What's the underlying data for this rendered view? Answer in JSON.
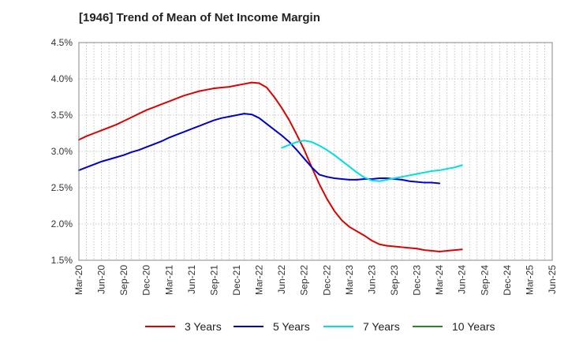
{
  "chart_data": {
    "type": "line",
    "title": "[1946]  Trend of Mean of Net Income Margin",
    "xlabel": "",
    "ylabel": "",
    "x_ticks": [
      "Mar-20",
      "Jun-20",
      "Sep-20",
      "Dec-20",
      "Mar-21",
      "Jun-21",
      "Sep-21",
      "Dec-21",
      "Mar-22",
      "Jun-22",
      "Sep-22",
      "Dec-22",
      "Mar-23",
      "Jun-23",
      "Sep-23",
      "Dec-23",
      "Mar-24",
      "Jun-24",
      "Sep-24",
      "Dec-24",
      "Mar-25",
      "Jun-25"
    ],
    "y_ticks": [
      "1.5%",
      "2.0%",
      "2.5%",
      "3.0%",
      "3.5%",
      "4.0%",
      "4.5%"
    ],
    "ylim": [
      1.5,
      4.5
    ],
    "grid": "dotted",
    "legend_position": "bottom",
    "series": [
      {
        "name": "3 Years",
        "color": "#e00000",
        "values": [
          3.16,
          3.21,
          3.25,
          3.29,
          3.33,
          3.37,
          3.42,
          3.47,
          3.52,
          3.57,
          3.61,
          3.65,
          3.69,
          3.73,
          3.77,
          3.8,
          3.83,
          3.85,
          3.87,
          3.88,
          3.89,
          3.91,
          3.93,
          3.95,
          3.94,
          3.88,
          3.75,
          3.6,
          3.43,
          3.23,
          3.02,
          2.78,
          2.55,
          2.35,
          2.18,
          2.05,
          1.96,
          1.9,
          1.84,
          1.77,
          1.72,
          1.7,
          1.69,
          1.68,
          1.67,
          1.66,
          1.64,
          1.63,
          1.62,
          1.63,
          1.64,
          1.65
        ]
      },
      {
        "name": "5 Years",
        "color": "#0000cc",
        "values": [
          2.74,
          2.78,
          2.82,
          2.86,
          2.89,
          2.92,
          2.95,
          2.99,
          3.02,
          3.06,
          3.1,
          3.14,
          3.19,
          3.23,
          3.27,
          3.31,
          3.35,
          3.39,
          3.43,
          3.46,
          3.48,
          3.5,
          3.52,
          3.51,
          3.46,
          3.38,
          3.3,
          3.22,
          3.13,
          3.02,
          2.9,
          2.78,
          2.68,
          2.65,
          2.63,
          2.62,
          2.61,
          2.61,
          2.62,
          2.62,
          2.63,
          2.63,
          2.62,
          2.61,
          2.59,
          2.58,
          2.57,
          2.57,
          2.56
        ]
      },
      {
        "name": "7 Years",
        "color": "#00e0e0",
        "values": [
          3.05,
          3.09,
          3.13,
          3.15,
          3.13,
          3.08,
          3.02,
          2.95,
          2.87,
          2.79,
          2.71,
          2.64,
          2.6,
          2.59,
          2.61,
          2.63,
          2.65,
          2.67,
          2.69,
          2.71,
          2.73,
          2.74,
          2.76,
          2.78,
          2.81
        ]
      },
      {
        "name": "10 Years",
        "color": "#228b22",
        "values": [
          2.62,
          2.65
        ]
      }
    ]
  }
}
